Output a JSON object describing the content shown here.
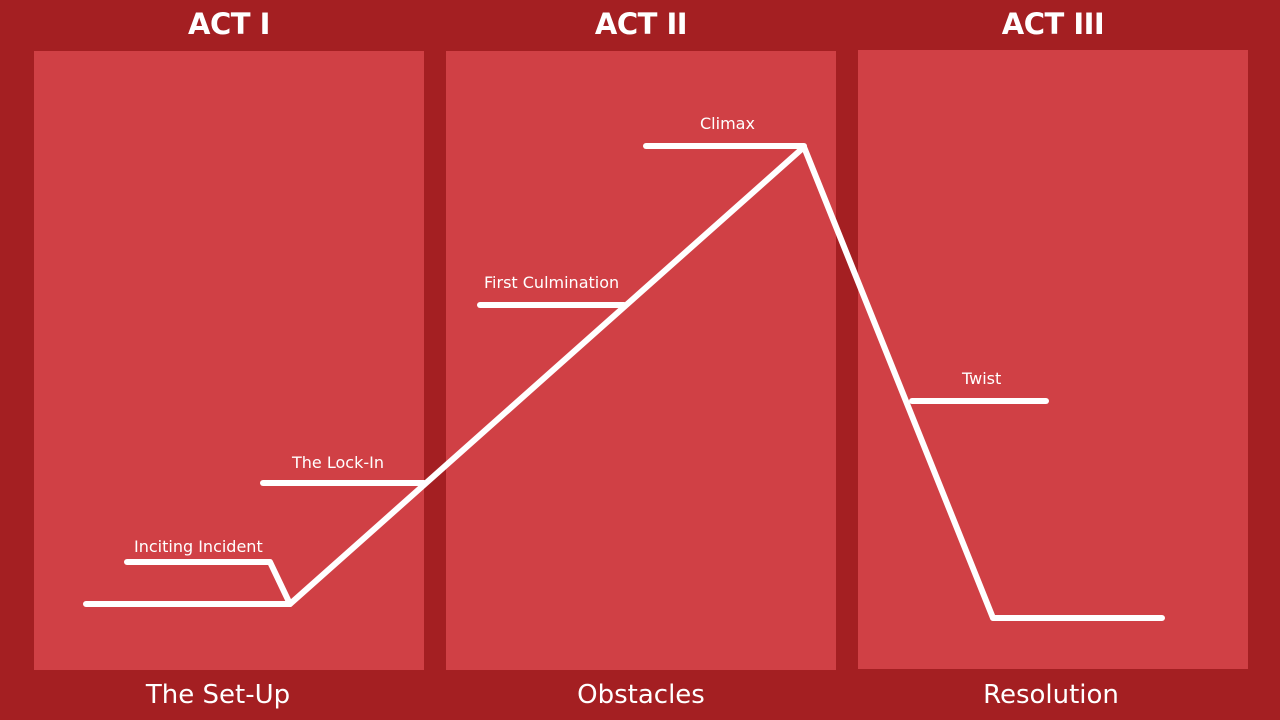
{
  "acts": [
    {
      "title": "ACT I",
      "subtitle": "The Set-Up"
    },
    {
      "title": "ACT II",
      "subtitle": "Obstacles"
    },
    {
      "title": "ACT III",
      "subtitle": "Resolution"
    }
  ],
  "beats": {
    "inciting_incident": "Inciting Incident",
    "lock_in": "The Lock-In",
    "first_culmination": "First Culmination",
    "climax": "Climax",
    "twist": "Twist"
  },
  "colors": {
    "background": "#a41f22",
    "panel": "#d04045",
    "line": "#ffffff"
  }
}
